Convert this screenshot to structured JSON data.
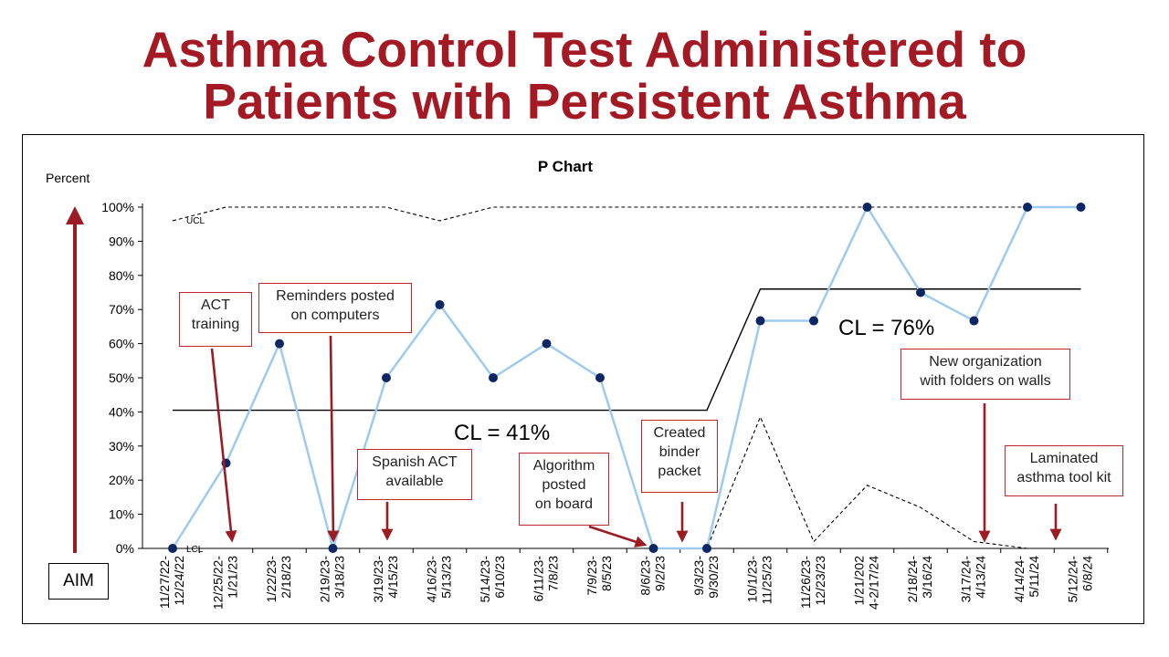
{
  "title_line1": "Asthma Control Test Administered to",
  "title_line2": "Patients with Persistent Asthma",
  "chart_data": {
    "type": "line",
    "title": "P Chart",
    "ylabel": "Percent",
    "ylim": [
      0,
      100
    ],
    "y_ticks": [
      "0%",
      "10%",
      "20%",
      "30%",
      "40%",
      "50%",
      "60%",
      "70%",
      "80%",
      "90%",
      "100%"
    ],
    "categories": [
      "11/27/22-12/24/22",
      "12/25/22-1/21/23",
      "1/22/23-2/18/23",
      "2/19/23-3/18/23",
      "3/19/23-4/15/23",
      "4/16/23-5/13/23",
      "5/14/23-6/10/23",
      "6/11/23-7/8/23",
      "7/9/23-8/5/23",
      "8/6/23-9/2/23",
      "9/3/23-9/30/23",
      "10/1/23-11/25/23",
      "11/26/23-12/23/23",
      "1/21/202 4-2/17/24",
      "2/18/24-3/16/24",
      "3/17/24-4/13/24",
      "4/14/24-5/11/24",
      "5/12/24-6/8/24"
    ],
    "category_lines": [
      [
        "11/27/22-",
        "12/24/22"
      ],
      [
        "12/25/22-",
        "1/21/23"
      ],
      [
        "1/22/23-",
        "2/18/23"
      ],
      [
        "2/19/23-",
        "3/18/23"
      ],
      [
        "3/19/23-",
        "4/15/23"
      ],
      [
        "4/16/23-",
        "5/13/23"
      ],
      [
        "5/14/23-",
        "6/10/23"
      ],
      [
        "6/11/23-",
        "7/8/23"
      ],
      [
        "7/9/23-",
        "8/5/23"
      ],
      [
        "8/6/23-",
        "9/2/23"
      ],
      [
        "9/3/23-",
        "9/30/23"
      ],
      [
        "10/1/23-",
        "11/25/23"
      ],
      [
        "11/26/23-",
        "12/23/23"
      ],
      [
        "1/21/202",
        "4-2/17/24"
      ],
      [
        "2/18/24-",
        "3/16/24"
      ],
      [
        "3/17/24-",
        "4/13/24"
      ],
      [
        "4/14/24-",
        "5/11/24"
      ],
      [
        "5/12/24-",
        "6/8/24"
      ]
    ],
    "series": [
      {
        "values": [
          0,
          25,
          60,
          0,
          50,
          71.4,
          50,
          60,
          50,
          0,
          0,
          66.7,
          66.7,
          100,
          75,
          66.7,
          100,
          100
        ]
      }
    ],
    "center_line": [
      40.5,
      40.5,
      40.5,
      40.5,
      40.5,
      40.5,
      40.5,
      40.5,
      40.5,
      40.5,
      40.5,
      76,
      76,
      76,
      76,
      76,
      76,
      76
    ],
    "ucl": [
      96,
      100,
      100,
      100,
      100,
      96,
      100,
      100,
      100,
      100,
      100,
      100,
      100,
      100,
      100,
      100,
      100,
      100
    ],
    "lcl": [
      0,
      0,
      0,
      0,
      0,
      0,
      0,
      0,
      0,
      0,
      0,
      38.5,
      2,
      18.5,
      12,
      2,
      0,
      0
    ],
    "ucl_label": "UCL",
    "lcl_label": "LCL",
    "cl_label_1": "CL = 41%",
    "cl_label_2": "CL = 76%",
    "aim_label": "AIM",
    "colors": {
      "series": "#9ccbef",
      "marker": "#0d2664",
      "annotation_border": "#c0282f",
      "arrow": "#9b1c23",
      "title": "#a31a25"
    }
  },
  "annotations": [
    {
      "lines": [
        "ACT",
        "training"
      ]
    },
    {
      "lines": [
        "Reminders posted",
        "on computers"
      ]
    },
    {
      "lines": [
        "Spanish ACT",
        "available"
      ]
    },
    {
      "lines": [
        "Algorithm",
        "posted",
        "on board"
      ]
    },
    {
      "lines": [
        "Created",
        "binder",
        "packet"
      ]
    },
    {
      "lines": [
        "New organization",
        "with folders on walls"
      ]
    },
    {
      "lines": [
        "Laminated",
        "asthma tool kit"
      ]
    }
  ]
}
